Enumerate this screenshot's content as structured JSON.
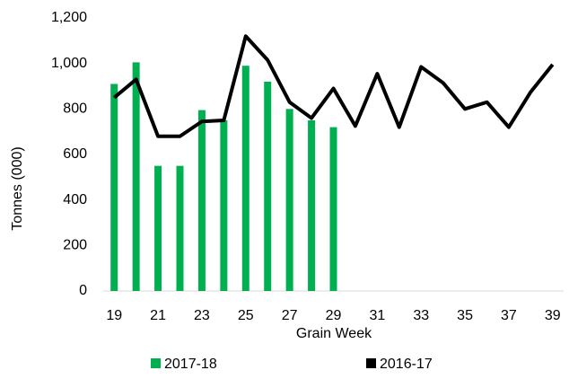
{
  "chart_data": {
    "type": "combo",
    "x_label": "Grain Week",
    "y_label": "Tonnes (000)",
    "x": [
      19,
      20,
      21,
      22,
      23,
      24,
      25,
      26,
      27,
      28,
      29,
      30,
      31,
      32,
      33,
      34,
      35,
      36,
      37,
      38,
      39
    ],
    "xlim": [
      18.5,
      39.5
    ],
    "xticks": [
      19,
      21,
      23,
      25,
      27,
      29,
      31,
      33,
      35,
      37,
      39
    ],
    "ylim": [
      0,
      1200
    ],
    "yticks": [
      0,
      200,
      400,
      600,
      800,
      {
        "value": 1000,
        "label": "1,000"
      },
      {
        "value": 1200,
        "label": "1,200"
      }
    ],
    "grid": false,
    "legend": "bottom",
    "series": [
      {
        "name": "2017-18",
        "type": "bar",
        "color": "#00b050",
        "values": [
          910,
          1005,
          550,
          550,
          795,
          750,
          990,
          920,
          800,
          750,
          720,
          null,
          null,
          null,
          null,
          null,
          null,
          null,
          null,
          null,
          null
        ]
      },
      {
        "name": "2016-17",
        "type": "line",
        "color": "#000000",
        "values": [
          850,
          930,
          680,
          680,
          745,
          750,
          1120,
          1015,
          830,
          760,
          890,
          725,
          955,
          720,
          985,
          915,
          800,
          830,
          720,
          875,
          995
        ]
      }
    ]
  }
}
